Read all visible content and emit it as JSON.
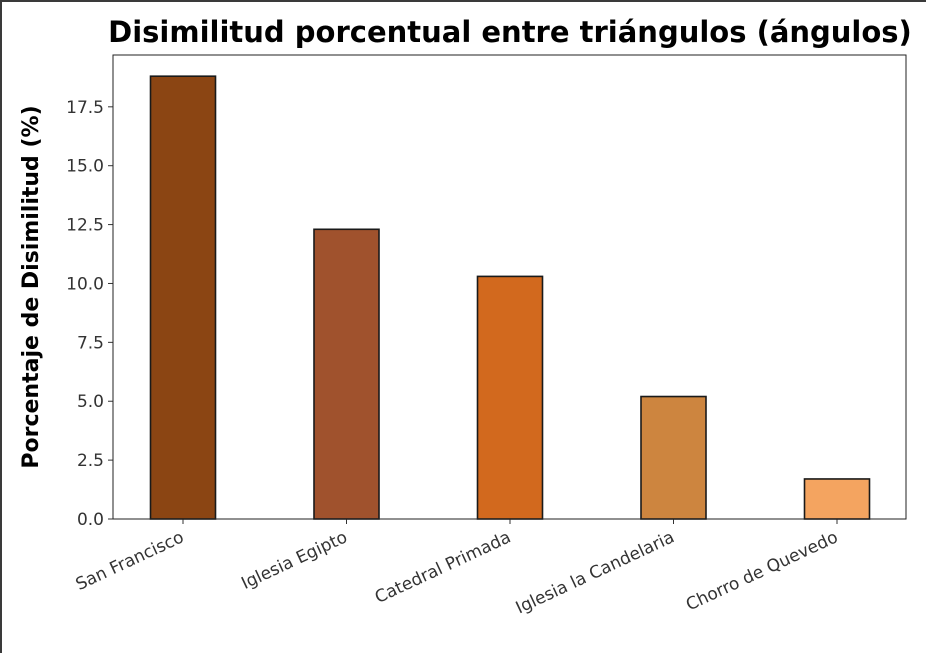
{
  "chart_data": {
    "type": "bar",
    "title": "Disimilitud porcentual entre triángulos (ángulos)",
    "xlabel": "",
    "ylabel": "Porcentaje de Disimilitud (%)",
    "categories": [
      "San Francisco",
      "Iglesia Egipto",
      "Catedral Primada",
      "Iglesia la Candelaria",
      "Chorro de Quevedo"
    ],
    "values": [
      18.8,
      12.3,
      10.3,
      5.2,
      1.7
    ],
    "colors": [
      "#8B4513",
      "#A0522D",
      "#D2691E",
      "#CD853F",
      "#F4A460"
    ],
    "edge_color": "#1a1a1a",
    "ylim": [
      0,
      19.7
    ],
    "yticks": [
      0.0,
      2.5,
      5.0,
      7.5,
      10.0,
      12.5,
      15.0,
      17.5
    ],
    "ytick_labels": [
      "0.0",
      "2.5",
      "5.0",
      "7.5",
      "10.0",
      "12.5",
      "15.0",
      "17.5"
    ],
    "grid": false,
    "legend": "none"
  }
}
